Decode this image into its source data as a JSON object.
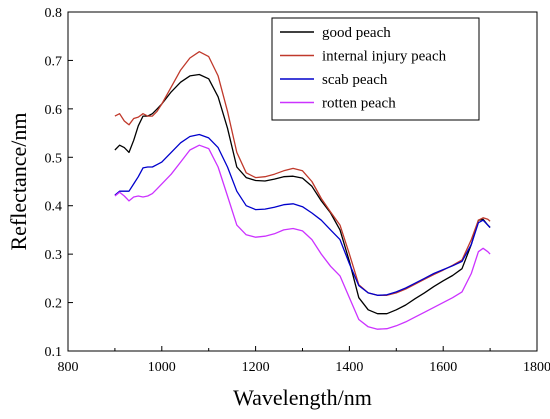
{
  "chart_data": {
    "type": "line",
    "title": "",
    "xlabel": "Wavelength/nm",
    "ylabel": "Reflectance/nm",
    "xlim": [
      800,
      1800
    ],
    "ylim": [
      0.1,
      0.8
    ],
    "xticks": [
      800,
      1000,
      1200,
      1400,
      1600,
      1800
    ],
    "yticks": [
      0.1,
      0.2,
      0.3,
      0.4,
      0.5,
      0.6,
      0.7,
      0.8
    ],
    "grid": false,
    "legend_position": "top-right",
    "series": [
      {
        "name": "good peach",
        "color": "#000000",
        "points": [
          [
            900,
            0.515
          ],
          [
            910,
            0.525
          ],
          [
            920,
            0.52
          ],
          [
            930,
            0.51
          ],
          [
            940,
            0.535
          ],
          [
            950,
            0.565
          ],
          [
            960,
            0.585
          ],
          [
            970,
            0.585
          ],
          [
            980,
            0.59
          ],
          [
            990,
            0.6
          ],
          [
            1000,
            0.61
          ],
          [
            1020,
            0.635
          ],
          [
            1040,
            0.655
          ],
          [
            1060,
            0.668
          ],
          [
            1080,
            0.671
          ],
          [
            1100,
            0.662
          ],
          [
            1120,
            0.625
          ],
          [
            1140,
            0.56
          ],
          [
            1160,
            0.48
          ],
          [
            1180,
            0.458
          ],
          [
            1200,
            0.452
          ],
          [
            1220,
            0.451
          ],
          [
            1240,
            0.455
          ],
          [
            1260,
            0.46
          ],
          [
            1280,
            0.461
          ],
          [
            1300,
            0.457
          ],
          [
            1320,
            0.44
          ],
          [
            1340,
            0.41
          ],
          [
            1360,
            0.385
          ],
          [
            1380,
            0.35
          ],
          [
            1400,
            0.285
          ],
          [
            1420,
            0.21
          ],
          [
            1440,
            0.185
          ],
          [
            1460,
            0.177
          ],
          [
            1480,
            0.177
          ],
          [
            1500,
            0.185
          ],
          [
            1520,
            0.195
          ],
          [
            1540,
            0.208
          ],
          [
            1560,
            0.22
          ],
          [
            1580,
            0.233
          ],
          [
            1600,
            0.245
          ],
          [
            1620,
            0.256
          ],
          [
            1640,
            0.27
          ],
          [
            1660,
            0.32
          ],
          [
            1675,
            0.37
          ],
          [
            1685,
            0.372
          ],
          [
            1695,
            0.36
          ],
          [
            1700,
            0.355
          ]
        ]
      },
      {
        "name": "internal injury peach",
        "color": "#c0392b",
        "points": [
          [
            900,
            0.585
          ],
          [
            910,
            0.59
          ],
          [
            920,
            0.575
          ],
          [
            930,
            0.567
          ],
          [
            940,
            0.58
          ],
          [
            950,
            0.583
          ],
          [
            960,
            0.59
          ],
          [
            970,
            0.585
          ],
          [
            980,
            0.585
          ],
          [
            990,
            0.595
          ],
          [
            1000,
            0.61
          ],
          [
            1020,
            0.645
          ],
          [
            1040,
            0.68
          ],
          [
            1060,
            0.705
          ],
          [
            1080,
            0.718
          ],
          [
            1100,
            0.708
          ],
          [
            1120,
            0.668
          ],
          [
            1140,
            0.595
          ],
          [
            1160,
            0.51
          ],
          [
            1180,
            0.468
          ],
          [
            1200,
            0.458
          ],
          [
            1220,
            0.46
          ],
          [
            1240,
            0.465
          ],
          [
            1260,
            0.472
          ],
          [
            1280,
            0.477
          ],
          [
            1300,
            0.472
          ],
          [
            1320,
            0.45
          ],
          [
            1340,
            0.415
          ],
          [
            1360,
            0.387
          ],
          [
            1380,
            0.36
          ],
          [
            1400,
            0.3
          ],
          [
            1420,
            0.237
          ],
          [
            1440,
            0.22
          ],
          [
            1460,
            0.215
          ],
          [
            1480,
            0.215
          ],
          [
            1500,
            0.22
          ],
          [
            1520,
            0.228
          ],
          [
            1540,
            0.238
          ],
          [
            1560,
            0.248
          ],
          [
            1580,
            0.258
          ],
          [
            1600,
            0.267
          ],
          [
            1620,
            0.277
          ],
          [
            1640,
            0.288
          ],
          [
            1660,
            0.33
          ],
          [
            1675,
            0.37
          ],
          [
            1685,
            0.375
          ],
          [
            1695,
            0.372
          ],
          [
            1700,
            0.368
          ]
        ]
      },
      {
        "name": "scab peach",
        "color": "#0000cc",
        "points": [
          [
            900,
            0.422
          ],
          [
            910,
            0.43
          ],
          [
            920,
            0.43
          ],
          [
            930,
            0.43
          ],
          [
            940,
            0.445
          ],
          [
            950,
            0.46
          ],
          [
            960,
            0.478
          ],
          [
            970,
            0.48
          ],
          [
            980,
            0.48
          ],
          [
            990,
            0.485
          ],
          [
            1000,
            0.49
          ],
          [
            1020,
            0.51
          ],
          [
            1040,
            0.53
          ],
          [
            1060,
            0.543
          ],
          [
            1080,
            0.547
          ],
          [
            1100,
            0.54
          ],
          [
            1120,
            0.52
          ],
          [
            1140,
            0.48
          ],
          [
            1160,
            0.43
          ],
          [
            1180,
            0.4
          ],
          [
            1200,
            0.392
          ],
          [
            1220,
            0.393
          ],
          [
            1240,
            0.397
          ],
          [
            1260,
            0.402
          ],
          [
            1280,
            0.404
          ],
          [
            1300,
            0.398
          ],
          [
            1320,
            0.385
          ],
          [
            1340,
            0.37
          ],
          [
            1360,
            0.35
          ],
          [
            1380,
            0.33
          ],
          [
            1400,
            0.28
          ],
          [
            1420,
            0.235
          ],
          [
            1440,
            0.22
          ],
          [
            1460,
            0.215
          ],
          [
            1480,
            0.216
          ],
          [
            1500,
            0.222
          ],
          [
            1520,
            0.23
          ],
          [
            1540,
            0.24
          ],
          [
            1560,
            0.25
          ],
          [
            1580,
            0.26
          ],
          [
            1600,
            0.268
          ],
          [
            1620,
            0.276
          ],
          [
            1640,
            0.285
          ],
          [
            1660,
            0.32
          ],
          [
            1675,
            0.365
          ],
          [
            1685,
            0.37
          ],
          [
            1695,
            0.36
          ],
          [
            1700,
            0.355
          ]
        ]
      },
      {
        "name": "rotten peach",
        "color": "#cc33ff",
        "points": [
          [
            900,
            0.42
          ],
          [
            910,
            0.428
          ],
          [
            920,
            0.42
          ],
          [
            930,
            0.41
          ],
          [
            940,
            0.418
          ],
          [
            950,
            0.42
          ],
          [
            960,
            0.418
          ],
          [
            970,
            0.42
          ],
          [
            980,
            0.425
          ],
          [
            990,
            0.435
          ],
          [
            1000,
            0.445
          ],
          [
            1020,
            0.465
          ],
          [
            1040,
            0.49
          ],
          [
            1060,
            0.515
          ],
          [
            1080,
            0.525
          ],
          [
            1100,
            0.518
          ],
          [
            1120,
            0.48
          ],
          [
            1140,
            0.42
          ],
          [
            1160,
            0.36
          ],
          [
            1180,
            0.34
          ],
          [
            1200,
            0.335
          ],
          [
            1220,
            0.337
          ],
          [
            1240,
            0.342
          ],
          [
            1260,
            0.35
          ],
          [
            1280,
            0.353
          ],
          [
            1300,
            0.348
          ],
          [
            1320,
            0.33
          ],
          [
            1340,
            0.3
          ],
          [
            1360,
            0.275
          ],
          [
            1380,
            0.255
          ],
          [
            1400,
            0.21
          ],
          [
            1420,
            0.165
          ],
          [
            1440,
            0.15
          ],
          [
            1460,
            0.145
          ],
          [
            1480,
            0.146
          ],
          [
            1500,
            0.152
          ],
          [
            1520,
            0.16
          ],
          [
            1540,
            0.17
          ],
          [
            1560,
            0.18
          ],
          [
            1580,
            0.19
          ],
          [
            1600,
            0.2
          ],
          [
            1620,
            0.21
          ],
          [
            1640,
            0.222
          ],
          [
            1660,
            0.26
          ],
          [
            1675,
            0.305
          ],
          [
            1685,
            0.312
          ],
          [
            1695,
            0.305
          ],
          [
            1700,
            0.3
          ]
        ]
      }
    ]
  }
}
